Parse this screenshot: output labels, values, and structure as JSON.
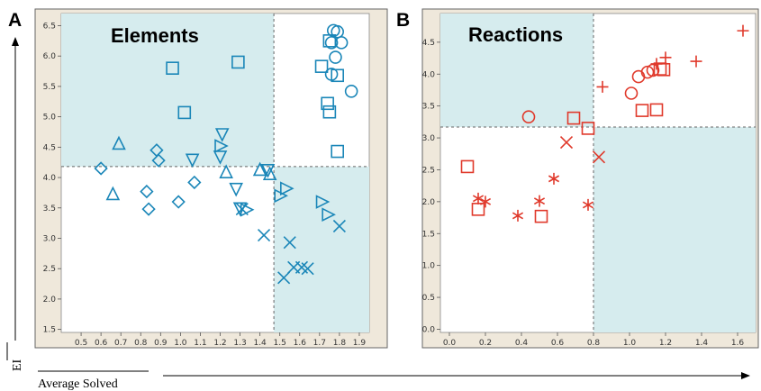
{
  "figure": {
    "ylabel": "EI",
    "xlabel": "Average Solved"
  },
  "chart_data": [
    {
      "panel": "A",
      "type": "scatter",
      "title": "Elements",
      "xlim": [
        0.4,
        1.95
      ],
      "ylim": [
        1.45,
        6.7
      ],
      "xticks": [
        "0.5",
        "0.6",
        "0.7",
        "0.8",
        "0.9",
        "1.0",
        "1.1",
        "1.2",
        "1.3",
        "1.4",
        "1.5",
        "1.6",
        "1.7",
        "1.8",
        "1.9"
      ],
      "yticks": [
        "1.5",
        "2.0",
        "2.5",
        "3.0",
        "3.5",
        "4.0",
        "4.5",
        "5.0",
        "5.5",
        "6.0",
        "6.5"
      ],
      "x_threshold": 1.47,
      "y_threshold": 4.18,
      "shaded_quadrants": [
        "top-left",
        "bottom-right"
      ],
      "grid": false,
      "color": "#1a86b8",
      "shade_color": "#d6ecee",
      "series": [
        {
          "marker": "circle",
          "points": [
            [
              1.77,
              6.42
            ],
            [
              1.79,
              6.4
            ],
            [
              1.76,
              6.22
            ],
            [
              1.81,
              6.22
            ],
            [
              1.78,
              5.98
            ],
            [
              1.76,
              5.7
            ],
            [
              1.86,
              5.42
            ]
          ]
        },
        {
          "marker": "square",
          "points": [
            [
              0.96,
              5.8
            ],
            [
              1.29,
              5.9
            ],
            [
              1.02,
              5.07
            ],
            [
              1.75,
              6.25
            ],
            [
              1.71,
              5.83
            ],
            [
              1.79,
              5.68
            ],
            [
              1.74,
              5.22
            ],
            [
              1.75,
              5.08
            ],
            [
              1.79,
              4.43
            ]
          ]
        },
        {
          "marker": "triangle-up",
          "points": [
            [
              0.69,
              4.55
            ],
            [
              0.66,
              3.72
            ],
            [
              1.23,
              4.08
            ],
            [
              1.4,
              4.12
            ],
            [
              1.45,
              4.05
            ]
          ]
        },
        {
          "marker": "diamond",
          "points": [
            [
              0.6,
              4.15
            ],
            [
              0.88,
              4.45
            ],
            [
              0.89,
              4.28
            ],
            [
              1.07,
              3.92
            ],
            [
              0.83,
              3.77
            ],
            [
              0.84,
              3.48
            ],
            [
              0.99,
              3.6
            ]
          ]
        },
        {
          "marker": "triangle-down",
          "points": [
            [
              1.21,
              4.72
            ],
            [
              1.06,
              4.3
            ],
            [
              1.2,
              4.35
            ],
            [
              1.44,
              4.13
            ],
            [
              1.28,
              3.82
            ],
            [
              1.3,
              3.5
            ]
          ]
        },
        {
          "marker": "triangle-right",
          "points": [
            [
              1.2,
              4.52
            ],
            [
              1.53,
              3.82
            ],
            [
              1.5,
              3.7
            ],
            [
              1.71,
              3.6
            ],
            [
              1.74,
              3.39
            ],
            [
              1.33,
              3.47
            ]
          ]
        },
        {
          "marker": "x",
          "points": [
            [
              1.31,
              3.48
            ],
            [
              1.42,
              3.05
            ],
            [
              1.55,
              2.93
            ],
            [
              1.57,
              2.52
            ],
            [
              1.61,
              2.52
            ],
            [
              1.64,
              2.5
            ],
            [
              1.52,
              2.35
            ],
            [
              1.8,
              3.2
            ]
          ]
        }
      ]
    },
    {
      "panel": "B",
      "type": "scatter",
      "title": "Reactions",
      "xlim": [
        -0.05,
        1.7
      ],
      "ylim": [
        -0.05,
        4.95
      ],
      "xticks": [
        "0.0",
        "0.2",
        "0.4",
        "0.6",
        "0.8",
        "1.0",
        "1.2",
        "1.4",
        "1.6"
      ],
      "yticks": [
        "0.0",
        "0.5",
        "1.0",
        "1.5",
        "2.0",
        "2.5",
        "3.0",
        "3.5",
        "4.0",
        "4.5"
      ],
      "x_threshold": 0.8,
      "y_threshold": 3.17,
      "shaded_quadrants": [
        "top-left",
        "bottom-right"
      ],
      "grid": false,
      "color": "#e0392b",
      "shade_color": "#d6ecee",
      "series": [
        {
          "marker": "plus",
          "points": [
            [
              1.63,
              4.68
            ],
            [
              1.2,
              4.26
            ],
            [
              1.37,
              4.2
            ],
            [
              1.15,
              4.16
            ],
            [
              0.85,
              3.8
            ]
          ]
        },
        {
          "marker": "circle",
          "points": [
            [
              0.44,
              3.33
            ],
            [
              1.01,
              3.7
            ],
            [
              1.05,
              3.96
            ],
            [
              1.1,
              4.03
            ],
            [
              1.13,
              4.06
            ]
          ]
        },
        {
          "marker": "square",
          "points": [
            [
              1.17,
              4.08
            ],
            [
              1.19,
              4.07
            ],
            [
              0.69,
              3.31
            ],
            [
              0.77,
              3.15
            ],
            [
              1.07,
              3.43
            ],
            [
              1.15,
              3.44
            ],
            [
              0.1,
              2.55
            ],
            [
              0.16,
              1.88
            ],
            [
              0.51,
              1.77
            ]
          ]
        },
        {
          "marker": "x",
          "points": [
            [
              0.65,
              2.93
            ],
            [
              0.83,
              2.7
            ]
          ]
        },
        {
          "marker": "asterisk",
          "points": [
            [
              0.58,
              2.36
            ],
            [
              0.16,
              2.05
            ],
            [
              0.2,
              2.0
            ],
            [
              0.5,
              2.01
            ],
            [
              0.38,
              1.78
            ],
            [
              0.77,
              1.95
            ]
          ]
        }
      ]
    }
  ]
}
